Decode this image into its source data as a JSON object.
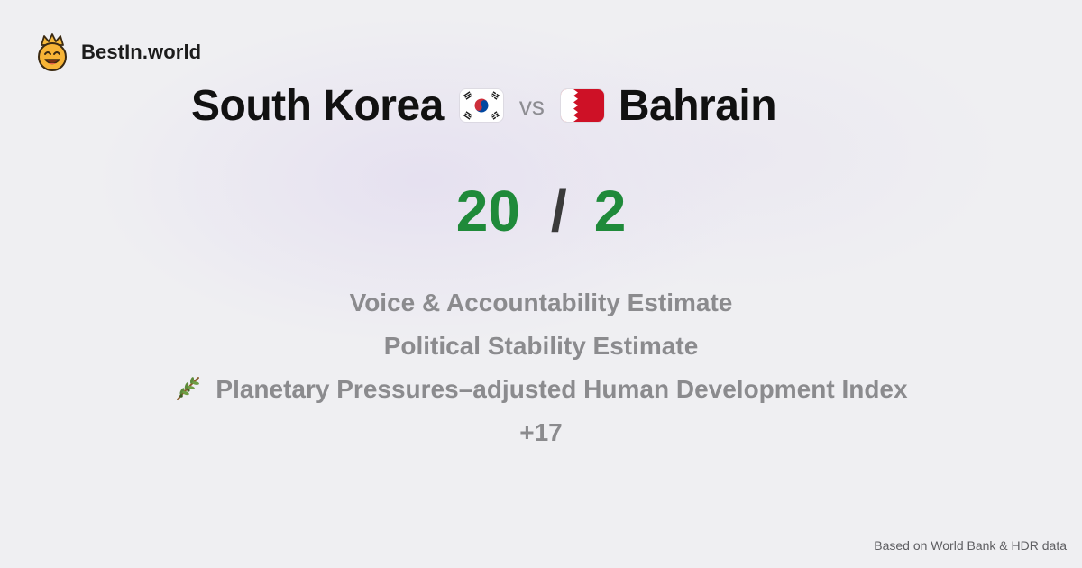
{
  "brand": {
    "name": "BestIn.world",
    "logo_icon": "crown-smiley-icon"
  },
  "comparison": {
    "country_a": "South Korea",
    "country_b": "Bahrain",
    "vs_label": "vs",
    "flag_a_icon": "south-korea-flag-icon",
    "flag_b_icon": "bahrain-flag-icon"
  },
  "score": {
    "a": "20",
    "separator": "/",
    "b": "2",
    "color": "#1f8a3a"
  },
  "criteria": [
    {
      "label": "Voice & Accountability Estimate"
    },
    {
      "label": "Political Stability Estimate"
    },
    {
      "label": "Planetary Pressures–adjusted Human Development Index",
      "icon": "olive-branch-icon"
    },
    {
      "label": "+17"
    }
  ],
  "footer": {
    "source": "Based on World Bank & HDR data"
  }
}
